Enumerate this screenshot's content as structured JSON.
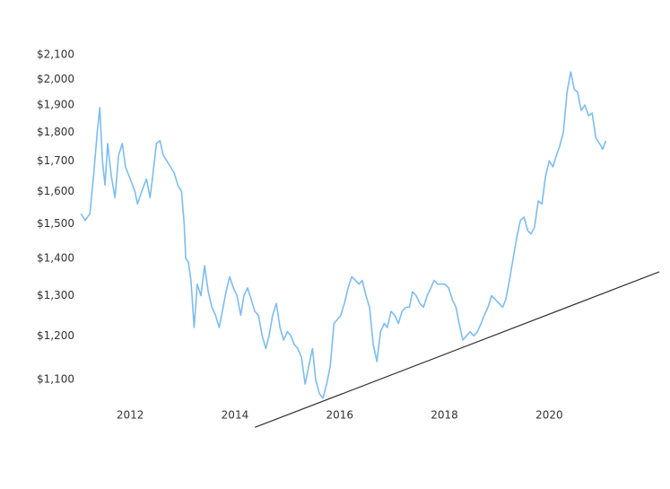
{
  "chart_data": {
    "type": "line",
    "log_scale_y": true,
    "x": [
      2011.06,
      2011.14,
      2011.23,
      2011.3,
      2011.37,
      2011.42,
      2011.47,
      2011.52,
      2011.57,
      2011.64,
      2011.71,
      2011.78,
      2011.85,
      2011.91,
      2012.0,
      2012.09,
      2012.14,
      2012.22,
      2012.31,
      2012.38,
      2012.43,
      2012.5,
      2012.57,
      2012.63,
      2012.7,
      2012.77,
      2012.84,
      2012.91,
      2012.98,
      2013.03,
      2013.06,
      2013.11,
      2013.16,
      2013.22,
      2013.28,
      2013.35,
      2013.42,
      2013.49,
      2013.56,
      2013.63,
      2013.7,
      2013.76,
      2013.83,
      2013.9,
      2013.97,
      2014.04,
      2014.11,
      2014.17,
      2014.24,
      2014.31,
      2014.38,
      2014.45,
      2014.52,
      2014.59,
      2014.65,
      2014.72,
      2014.79,
      2014.86,
      2014.93,
      2015.0,
      2015.07,
      2015.13,
      2015.2,
      2015.27,
      2015.34,
      2015.41,
      2015.48,
      2015.54,
      2015.61,
      2015.68,
      2015.75,
      2015.82,
      2015.89,
      2015.96,
      2016.02,
      2016.09,
      2016.16,
      2016.23,
      2016.3,
      2016.37,
      2016.43,
      2016.5,
      2016.57,
      2016.64,
      2016.71,
      2016.78,
      2016.85,
      2016.91,
      2016.98,
      2017.05,
      2017.12,
      2017.19,
      2017.26,
      2017.33,
      2017.39,
      2017.46,
      2017.53,
      2017.6,
      2017.67,
      2017.74,
      2017.8,
      2017.87,
      2017.94,
      2018.01,
      2018.08,
      2018.15,
      2018.22,
      2018.28,
      2018.35,
      2018.42,
      2018.49,
      2018.56,
      2018.63,
      2018.7,
      2018.76,
      2018.83,
      2018.9,
      2018.97,
      2019.04,
      2019.11,
      2019.17,
      2019.24,
      2019.31,
      2019.38,
      2019.45,
      2019.52,
      2019.59,
      2019.65,
      2019.72,
      2019.79,
      2019.86,
      2019.93,
      2020.0,
      2020.07,
      2020.14,
      2020.2,
      2020.27,
      2020.34,
      2020.41,
      2020.48,
      2020.54,
      2020.61,
      2020.68,
      2020.75,
      2020.82,
      2020.89,
      2020.96,
      2021.02,
      2021.08
    ],
    "series": [
      {
        "color": "#7dbdee",
        "values": [
          1530,
          1510,
          1530,
          1650,
          1800,
          1890,
          1700,
          1620,
          1760,
          1650,
          1580,
          1720,
          1760,
          1680,
          1640,
          1600,
          1560,
          1600,
          1640,
          1580,
          1650,
          1760,
          1770,
          1720,
          1700,
          1680,
          1660,
          1620,
          1600,
          1500,
          1400,
          1390,
          1340,
          1220,
          1330,
          1300,
          1380,
          1310,
          1270,
          1250,
          1220,
          1260,
          1310,
          1350,
          1320,
          1300,
          1250,
          1300,
          1320,
          1290,
          1260,
          1250,
          1200,
          1170,
          1200,
          1250,
          1280,
          1220,
          1190,
          1210,
          1200,
          1180,
          1170,
          1150,
          1090,
          1130,
          1170,
          1100,
          1070,
          1060,
          1090,
          1130,
          1230,
          1240,
          1250,
          1280,
          1320,
          1350,
          1340,
          1330,
          1340,
          1300,
          1270,
          1180,
          1140,
          1210,
          1230,
          1220,
          1260,
          1250,
          1230,
          1260,
          1270,
          1270,
          1310,
          1300,
          1280,
          1270,
          1300,
          1320,
          1340,
          1330,
          1330,
          1330,
          1320,
          1290,
          1270,
          1230,
          1190,
          1200,
          1210,
          1200,
          1210,
          1230,
          1250,
          1270,
          1300,
          1290,
          1280,
          1270,
          1290,
          1340,
          1400,
          1460,
          1510,
          1520,
          1480,
          1470,
          1490,
          1570,
          1560,
          1650,
          1700,
          1680,
          1720,
          1750,
          1800,
          1950,
          2030,
          1960,
          1950,
          1880,
          1900,
          1860,
          1870,
          1780,
          1760,
          1740,
          1770
        ]
      }
    ],
    "trendline": {
      "x": [
        2014.38,
        2022.1
      ],
      "values": [
        1000,
        1363
      ],
      "color": "#333333"
    },
    "xlim": [
      2010.97,
      2022.1
    ],
    "xticks": [
      2012,
      2014,
      2016,
      2018,
      2020
    ],
    "ylim": [
      997,
      2142
    ],
    "yticks": [
      {
        "value": 1100,
        "label": "$1,100"
      },
      {
        "value": 1200,
        "label": "$1,200"
      },
      {
        "value": 1300,
        "label": "$1,300"
      },
      {
        "value": 1400,
        "label": "$1,400"
      },
      {
        "value": 1500,
        "label": "$1,500"
      },
      {
        "value": 1600,
        "label": "$1,600"
      },
      {
        "value": 1700,
        "label": "$1,700"
      },
      {
        "value": 1800,
        "label": "$1,800"
      },
      {
        "value": 1900,
        "label": "$1,900"
      },
      {
        "value": 2000,
        "label": "$2,000"
      },
      {
        "value": 2100,
        "label": "$2,100"
      }
    ]
  }
}
